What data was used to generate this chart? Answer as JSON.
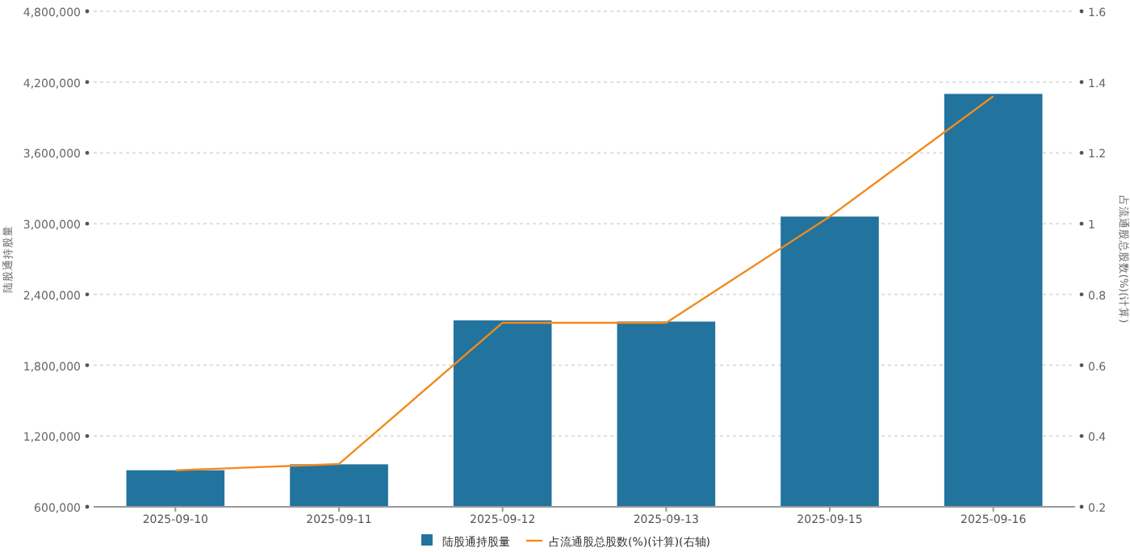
{
  "chart_data": {
    "type": "bar",
    "ylabel": "陆股通持股量",
    "y2label": "占流通股总股数(%)(计算)",
    "categories": [
      "2025-09-10",
      "2025-09-11",
      "2025-09-12",
      "2025-09-13",
      "2025-09-15",
      "2025-09-16"
    ],
    "series": [
      {
        "name": "陆股通持股量",
        "color": "#22739e",
        "values": [
          910000,
          960000,
          2180000,
          2170000,
          3060000,
          4100000
        ]
      },
      {
        "name": "占流通股总股数(%)(计算)(右轴)",
        "type": "line",
        "axis": "y2",
        "color": "#f28a1d",
        "values": [
          0.303,
          0.321,
          0.72,
          0.72,
          1.02,
          1.36
        ]
      }
    ],
    "ylim": [
      600000,
      4800000
    ],
    "yticks": [
      {
        "value": 600000,
        "label": "600,000"
      },
      {
        "value": 1200000,
        "label": "1,200,000"
      },
      {
        "value": 1800000,
        "label": "1,800,000"
      },
      {
        "value": 2400000,
        "label": "2,400,000"
      },
      {
        "value": 3000000,
        "label": "3,000,000"
      },
      {
        "value": 3600000,
        "label": "3,600,000"
      },
      {
        "value": 4200000,
        "label": "4,200,000"
      },
      {
        "value": 4800000,
        "label": "4,800,000"
      }
    ],
    "y2lim": [
      0.2,
      1.6
    ],
    "y2ticks": [
      0.2,
      0.4,
      0.6,
      0.8,
      1,
      1.2,
      1.4,
      1.6
    ],
    "grid": "y",
    "legend": "bottom",
    "marker": "none"
  }
}
